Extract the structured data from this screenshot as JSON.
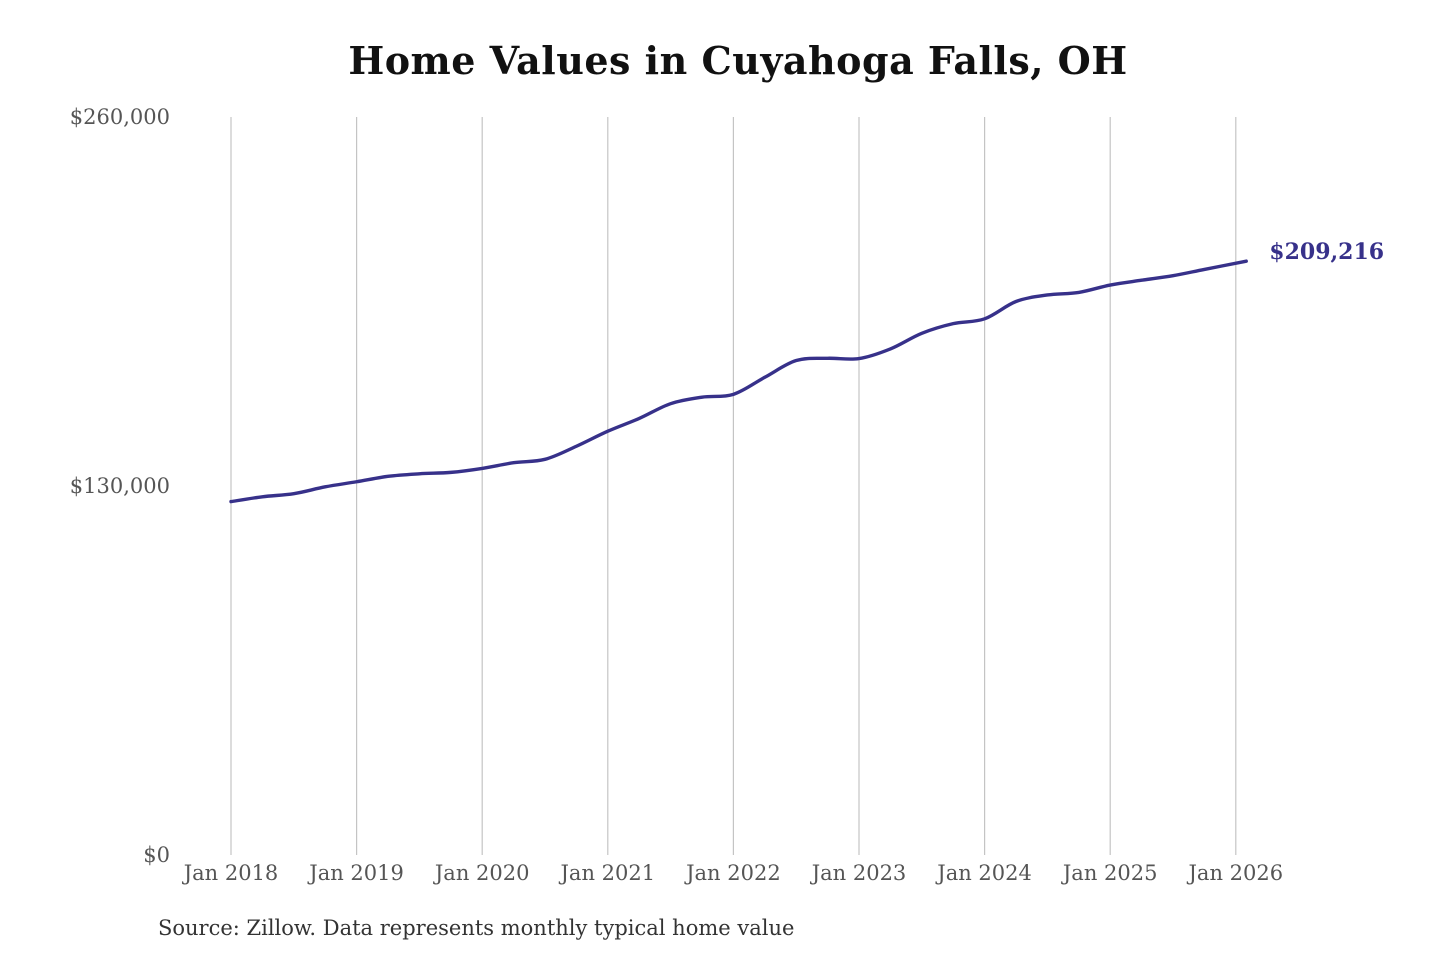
{
  "chart_data": {
    "type": "line",
    "title": "Home Values in Cuyahoga Falls, OH",
    "xlabel": "",
    "ylabel": "",
    "ylim": [
      0,
      260000
    ],
    "xlim": [
      "2018-01",
      "2026-02"
    ],
    "grid": "vertical",
    "legend": "none",
    "y_ticks": [
      {
        "value": 0,
        "label": "$0"
      },
      {
        "value": 130000,
        "label": "$130,000"
      },
      {
        "value": 260000,
        "label": "$260,000"
      }
    ],
    "x_ticks": [
      {
        "date": "2018-01",
        "label": "Jan 2018"
      },
      {
        "date": "2019-01",
        "label": "Jan 2019"
      },
      {
        "date": "2020-01",
        "label": "Jan 2020"
      },
      {
        "date": "2021-01",
        "label": "Jan 2021"
      },
      {
        "date": "2022-01",
        "label": "Jan 2022"
      },
      {
        "date": "2023-01",
        "label": "Jan 2023"
      },
      {
        "date": "2024-01",
        "label": "Jan 2024"
      },
      {
        "date": "2025-01",
        "label": "Jan 2025"
      },
      {
        "date": "2026-01",
        "label": "Jan 2026"
      }
    ],
    "series": [
      {
        "color": "#37318a",
        "end_label": "$209,216",
        "points": [
          {
            "x": "2018-01",
            "y": 124500
          },
          {
            "x": "2018-04",
            "y": 126200
          },
          {
            "x": "2018-07",
            "y": 127300
          },
          {
            "x": "2018-10",
            "y": 129700
          },
          {
            "x": "2019-01",
            "y": 131500
          },
          {
            "x": "2019-04",
            "y": 133400
          },
          {
            "x": "2019-07",
            "y": 134300
          },
          {
            "x": "2019-10",
            "y": 134800
          },
          {
            "x": "2020-01",
            "y": 136200
          },
          {
            "x": "2020-04",
            "y": 138200
          },
          {
            "x": "2020-07",
            "y": 139400
          },
          {
            "x": "2020-10",
            "y": 144000
          },
          {
            "x": "2021-01",
            "y": 149300
          },
          {
            "x": "2021-04",
            "y": 153800
          },
          {
            "x": "2021-07",
            "y": 159000
          },
          {
            "x": "2021-10",
            "y": 161300
          },
          {
            "x": "2022-01",
            "y": 162300
          },
          {
            "x": "2022-04",
            "y": 168300
          },
          {
            "x": "2022-07",
            "y": 174200
          },
          {
            "x": "2022-10",
            "y": 175000
          },
          {
            "x": "2023-01",
            "y": 174900
          },
          {
            "x": "2023-04",
            "y": 178300
          },
          {
            "x": "2023-07",
            "y": 183800
          },
          {
            "x": "2023-10",
            "y": 187200
          },
          {
            "x": "2024-01",
            "y": 188900
          },
          {
            "x": "2024-04",
            "y": 195000
          },
          {
            "x": "2024-07",
            "y": 197300
          },
          {
            "x": "2024-10",
            "y": 198200
          },
          {
            "x": "2025-01",
            "y": 200800
          },
          {
            "x": "2025-04",
            "y": 202500
          },
          {
            "x": "2025-07",
            "y": 204100
          },
          {
            "x": "2025-10",
            "y": 206300
          },
          {
            "x": "2026-02",
            "y": 209216
          }
        ]
      }
    ],
    "source": "Source: Zillow. Data represents monthly typical home value"
  }
}
